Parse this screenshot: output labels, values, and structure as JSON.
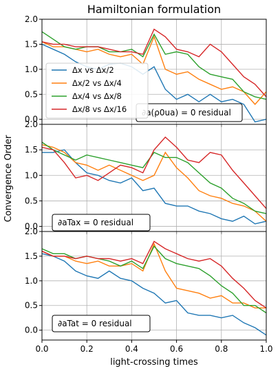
{
  "figure": {
    "title": "Hamiltonian formulation",
    "ylabel": "Convergence Order",
    "xlabel": "light-crossing times"
  },
  "chart_data": [
    {
      "type": "line",
      "title": "",
      "annotation": "∂a(ρ0ua) = 0 residual",
      "xlim": [
        0,
        1
      ],
      "ylim": [
        -0.1,
        2.0
      ],
      "grid": true,
      "legend": "upper-left",
      "x_ticks": [
        "0.0",
        "0.2",
        "0.4",
        "0.6",
        "0.8",
        "1.0"
      ],
      "y_ticks": [
        "0.0",
        "0.5",
        "1.0",
        "1.5",
        "2.0"
      ],
      "x": [
        0.0,
        0.05,
        0.1,
        0.15,
        0.2,
        0.25,
        0.3,
        0.35,
        0.4,
        0.45,
        0.5,
        0.55,
        0.6,
        0.65,
        0.7,
        0.75,
        0.8,
        0.85,
        0.9,
        0.95,
        1.0
      ],
      "series": [
        {
          "name": "Δx vs Δx/2",
          "color": "#1f77b4",
          "values": [
            1.5,
            1.4,
            1.3,
            1.15,
            1.05,
            1.0,
            1.1,
            1.12,
            1.05,
            0.9,
            1.05,
            0.6,
            0.4,
            0.5,
            0.35,
            0.5,
            0.35,
            0.4,
            0.3,
            -0.05,
            0.0
          ]
        },
        {
          "name": "Δx/2 vs Δx/4",
          "color": "#ff7f0e",
          "values": [
            1.55,
            1.45,
            1.45,
            1.4,
            1.35,
            1.4,
            1.3,
            1.25,
            1.3,
            1.1,
            1.65,
            1.0,
            0.9,
            0.95,
            0.8,
            0.7,
            0.6,
            0.65,
            0.55,
            0.3,
            0.55
          ]
        },
        {
          "name": "Δx/4 vs Δx/8",
          "color": "#2ca02c",
          "values": [
            1.75,
            1.6,
            1.45,
            1.4,
            1.45,
            1.45,
            1.35,
            1.35,
            1.4,
            1.25,
            1.7,
            1.3,
            1.35,
            1.3,
            1.05,
            0.9,
            0.85,
            0.8,
            0.55,
            0.45,
            0.4
          ]
        },
        {
          "name": "Δx/8 vs Δx/16",
          "color": "#d62728",
          "values": [
            1.55,
            1.5,
            1.5,
            1.45,
            1.45,
            1.45,
            1.4,
            1.35,
            1.35,
            1.3,
            1.8,
            1.65,
            1.4,
            1.35,
            1.25,
            1.5,
            1.35,
            1.1,
            0.85,
            0.7,
            0.45
          ]
        }
      ]
    },
    {
      "type": "line",
      "title": "",
      "annotation": "∂aTax = 0 residual",
      "xlim": [
        0,
        1
      ],
      "ylim": [
        -0.1,
        2.0
      ],
      "grid": true,
      "x_ticks": [
        "0.0",
        "0.2",
        "0.4",
        "0.6",
        "0.8",
        "1.0"
      ],
      "y_ticks": [
        "0.0",
        "0.5",
        "1.0",
        "1.5",
        "2.0"
      ],
      "x": [
        0.0,
        0.05,
        0.1,
        0.15,
        0.2,
        0.25,
        0.3,
        0.35,
        0.4,
        0.45,
        0.5,
        0.55,
        0.6,
        0.65,
        0.7,
        0.75,
        0.8,
        0.85,
        0.9,
        0.95,
        1.0
      ],
      "series": [
        {
          "name": "Δx vs Δx/2",
          "color": "#1f77b4",
          "values": [
            1.45,
            1.45,
            1.5,
            1.25,
            1.05,
            1.0,
            0.9,
            0.85,
            0.95,
            0.7,
            0.75,
            0.45,
            0.4,
            0.4,
            0.3,
            0.25,
            0.15,
            0.1,
            0.2,
            0.05,
            0.1
          ]
        },
        {
          "name": "Δx/2 vs Δx/4",
          "color": "#ff7f0e",
          "values": [
            1.6,
            1.55,
            1.45,
            1.25,
            1.2,
            1.1,
            1.2,
            1.1,
            1.0,
            0.9,
            1.0,
            1.45,
            1.15,
            0.95,
            0.7,
            0.6,
            0.55,
            0.45,
            0.4,
            0.3,
            0.1
          ]
        },
        {
          "name": "Δx/4 vs Δx/8",
          "color": "#2ca02c",
          "values": [
            1.65,
            1.5,
            1.4,
            1.3,
            1.4,
            1.35,
            1.3,
            1.25,
            1.2,
            1.15,
            1.45,
            1.35,
            1.35,
            1.25,
            1.05,
            0.85,
            0.75,
            0.55,
            0.45,
            0.3,
            0.25
          ]
        },
        {
          "name": "Δx/8 vs Δx/16",
          "color": "#d62728",
          "values": [
            1.55,
            1.5,
            1.25,
            0.95,
            1.0,
            0.9,
            1.05,
            1.2,
            1.15,
            1.05,
            1.5,
            1.75,
            1.55,
            1.3,
            1.25,
            1.45,
            1.4,
            1.1,
            0.85,
            0.6,
            0.35
          ]
        }
      ]
    },
    {
      "type": "line",
      "title": "",
      "annotation": "∂aTat = 0 residual",
      "xlim": [
        0,
        1
      ],
      "ylim": [
        -0.2,
        2.0
      ],
      "grid": true,
      "x_ticks": [
        "0.0",
        "0.2",
        "0.4",
        "0.6",
        "0.8",
        "1.0"
      ],
      "y_ticks": [
        "0.0",
        "0.5",
        "1.0",
        "1.5",
        "2.0"
      ],
      "x": [
        0.0,
        0.05,
        0.1,
        0.15,
        0.2,
        0.25,
        0.3,
        0.35,
        0.4,
        0.45,
        0.5,
        0.55,
        0.6,
        0.65,
        0.7,
        0.75,
        0.8,
        0.85,
        0.9,
        0.95,
        1.0
      ],
      "series": [
        {
          "name": "Δx vs Δx/2",
          "color": "#1f77b4",
          "values": [
            1.55,
            1.5,
            1.4,
            1.2,
            1.1,
            1.05,
            1.2,
            1.05,
            1.0,
            0.85,
            0.75,
            0.55,
            0.6,
            0.35,
            0.3,
            0.3,
            0.25,
            0.3,
            0.15,
            0.05,
            -0.1
          ]
        },
        {
          "name": "Δx/2 vs Δx/4",
          "color": "#ff7f0e",
          "values": [
            1.6,
            1.5,
            1.5,
            1.4,
            1.35,
            1.4,
            1.3,
            1.3,
            1.35,
            1.2,
            1.75,
            1.2,
            0.85,
            0.8,
            0.75,
            0.65,
            0.7,
            0.55,
            0.55,
            0.45,
            0.45
          ]
        },
        {
          "name": "Δx/4 vs Δx/8",
          "color": "#2ca02c",
          "values": [
            1.65,
            1.55,
            1.55,
            1.45,
            1.5,
            1.45,
            1.4,
            1.3,
            1.4,
            1.25,
            1.7,
            1.45,
            1.35,
            1.3,
            1.25,
            1.1,
            0.9,
            0.75,
            0.5,
            0.5,
            0.35
          ]
        },
        {
          "name": "Δx/8 vs Δx/16",
          "color": "#d62728",
          "values": [
            1.6,
            1.5,
            1.5,
            1.45,
            1.5,
            1.45,
            1.45,
            1.4,
            1.45,
            1.35,
            1.8,
            1.65,
            1.55,
            1.45,
            1.4,
            1.45,
            1.3,
            1.05,
            0.85,
            0.6,
            0.45
          ]
        }
      ]
    }
  ]
}
